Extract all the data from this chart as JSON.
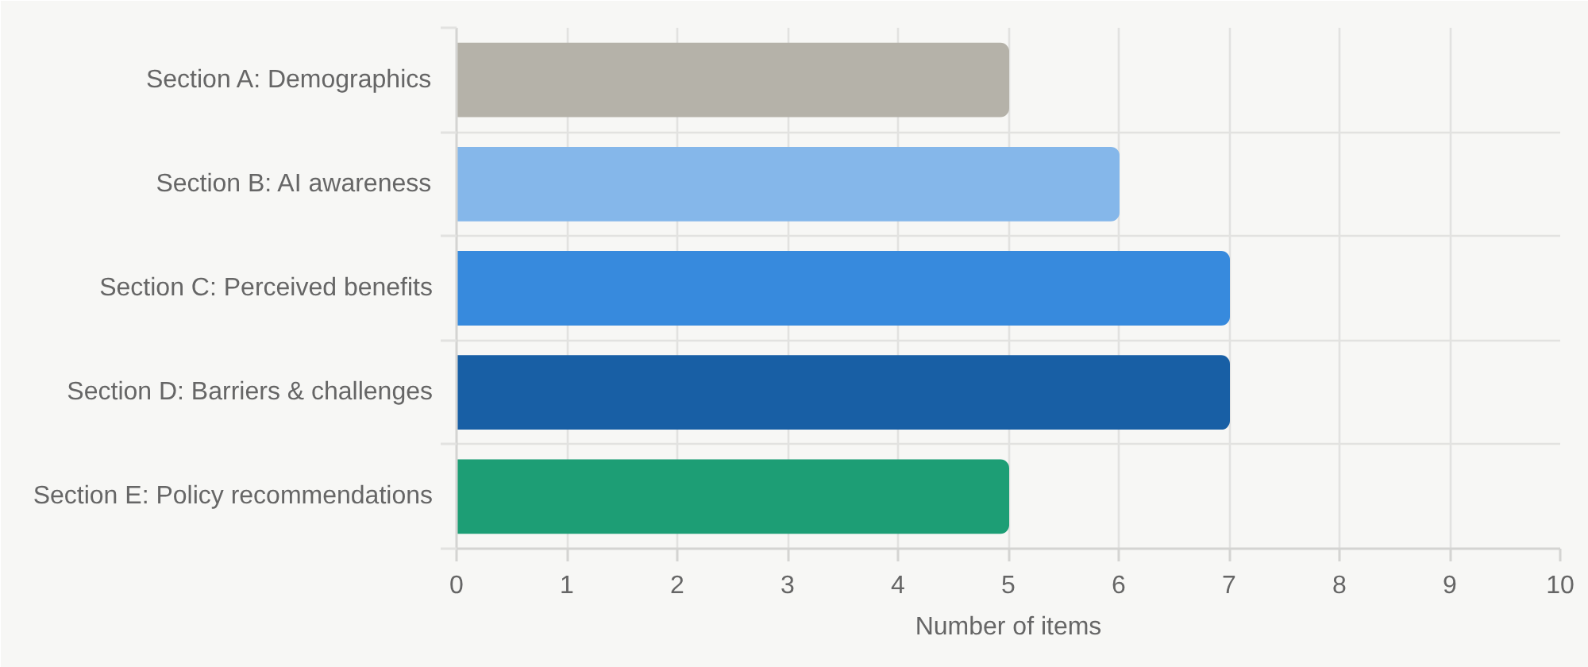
{
  "chart_data": {
    "type": "bar",
    "orientation": "horizontal",
    "categories": [
      "Section A: Demographics",
      "Section B: AI awareness",
      "Section C: Perceived benefits",
      "Section D: Barriers & challenges",
      "Section E: Policy recommendations"
    ],
    "values": [
      5,
      6,
      7,
      7,
      5
    ],
    "colors": [
      "#b5b2a9",
      "#85b7ea",
      "#378add",
      "#185fa5",
      "#1d9e75"
    ],
    "xlabel": "Number of items",
    "xlim": [
      0,
      10
    ],
    "xticks": [
      0,
      1,
      2,
      3,
      4,
      5,
      6,
      7,
      8,
      9,
      10
    ],
    "grid": true
  }
}
